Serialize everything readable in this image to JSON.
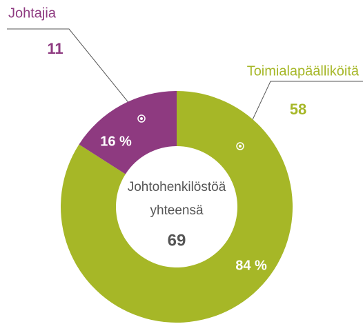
{
  "chart_data": {
    "type": "donut",
    "categories": [
      "Toimialapäälliköitä",
      "Johtajia"
    ],
    "values": [
      58,
      11
    ],
    "percents": [
      84,
      16
    ],
    "percent_labels": [
      "84 %",
      "16 %"
    ],
    "colors": [
      "#a6b727",
      "#8e3a80"
    ],
    "center_label": [
      "Johtohenkilöstöä",
      "yhteensä"
    ],
    "total": 69
  }
}
